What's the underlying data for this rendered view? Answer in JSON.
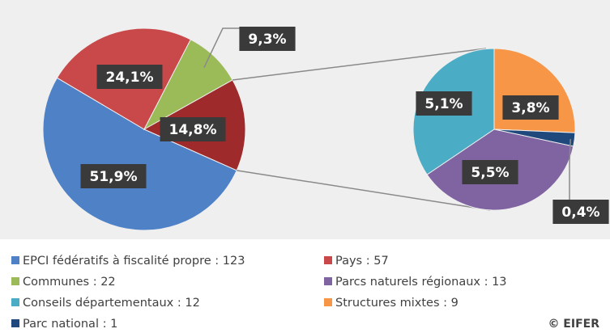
{
  "chart_data": {
    "type": "pie_of_pie",
    "categories": [
      "EPCI fédératifs à fiscalité propre : 123",
      "Pays : 57",
      "Communes : 22",
      "Structures mixtes : 9",
      "Parc national : 1",
      "Parcs naturels régionaux : 13",
      "Conseils départementaux : 12"
    ],
    "values": [
      51.9,
      24.1,
      9.3,
      3.8,
      0.4,
      5.5,
      5.1
    ],
    "value_labels": [
      "51,9%",
      "24,1%",
      "9,3%",
      "3,8%",
      "0,4%",
      "5,5%",
      "5,1%"
    ],
    "colors": [
      "#4f81c7",
      "#c9494a",
      "#9bbb59",
      "#f79646",
      "#1f497d",
      "#8064a2",
      "#4bacc6"
    ],
    "secondary_from": 3,
    "other_value": 14.8,
    "other_label": "14,8%",
    "other_color": "#9e2a2b",
    "credit": "© EIFER"
  }
}
